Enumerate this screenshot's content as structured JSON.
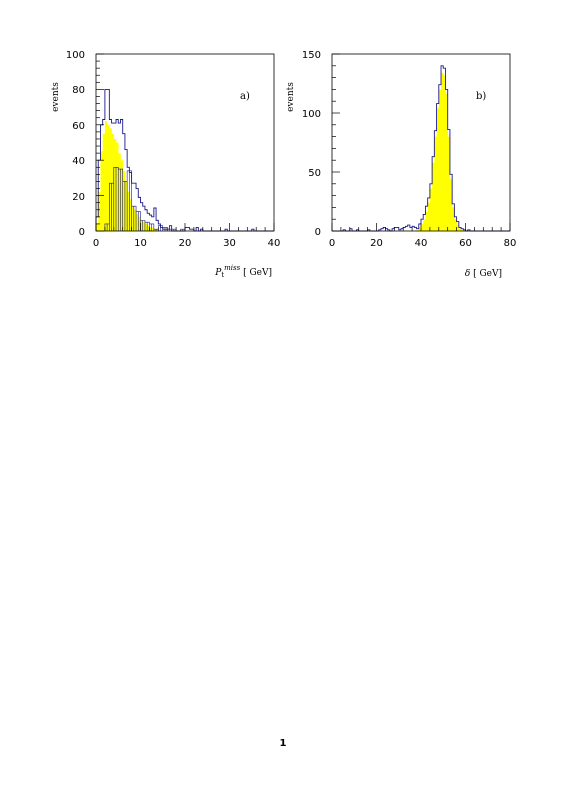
{
  "page": {
    "number": "1"
  },
  "colors": {
    "fill": "#ffff00",
    "outline": "#1a1a8c",
    "axis": "#000000"
  },
  "chart_data": [
    {
      "type": "histogram",
      "panel_label": "a)",
      "ylabel": "events",
      "xlabel_main": "P",
      "xlabel_sub": "t",
      "xlabel_sup": "miss",
      "xlabel_unit": " [ GeV]",
      "xlim": [
        0,
        40
      ],
      "ylim": [
        0,
        100
      ],
      "xticks": [
        0,
        10,
        20,
        30,
        40
      ],
      "yticks": [
        0,
        20,
        40,
        60,
        80,
        100
      ],
      "bin_start": 0,
      "bin_width": 0.5,
      "outline_values": [
        0,
        0,
        0,
        0,
        4,
        4,
        27,
        27,
        36,
        36,
        35,
        35,
        28,
        28,
        34,
        34,
        14,
        14,
        11,
        11,
        6,
        6,
        5,
        5,
        4,
        4,
        1,
        1,
        3,
        3,
        2,
        2,
        1,
        1,
        1,
        1,
        0,
        0,
        1,
        1,
        0,
        0,
        0,
        0,
        0,
        0,
        0,
        0,
        0,
        0,
        0,
        0,
        0,
        0,
        0,
        0,
        0,
        0,
        0,
        0,
        0,
        0,
        0,
        0,
        0,
        0,
        0,
        0,
        0,
        0,
        0,
        0,
        0,
        0,
        0,
        0,
        0,
        0,
        0,
        0
      ],
      "series": [
        {
          "name": "",
          "values": [
            8,
            40,
            60,
            63,
            80,
            80,
            63,
            61,
            61,
            63,
            61,
            63,
            55,
            46,
            36,
            33,
            27,
            27,
            24,
            19,
            16,
            14,
            12,
            10,
            9,
            8,
            13,
            6,
            4,
            2,
            1,
            1,
            1,
            3,
            0,
            0,
            0,
            0,
            0,
            0,
            2,
            2,
            1,
            1,
            0,
            2,
            0,
            1,
            0,
            0,
            0,
            0,
            0,
            0,
            0,
            0,
            0,
            0,
            1,
            0,
            0,
            0,
            0,
            0,
            0,
            0,
            0,
            0,
            0,
            0,
            1,
            0,
            0,
            0,
            0,
            0,
            0,
            0,
            0,
            0
          ]
        },
        {
          "name": "",
          "values": [
            4,
            22,
            45,
            55,
            62,
            60,
            58,
            55,
            52,
            50,
            44,
            40,
            34,
            28,
            22,
            18,
            14,
            12,
            10,
            8,
            6,
            5,
            4,
            3,
            2,
            2,
            1,
            1,
            0,
            0,
            0,
            0,
            0,
            0,
            0,
            0,
            0,
            0,
            0,
            0,
            0,
            0,
            0,
            0,
            0,
            0,
            0,
            0,
            0,
            0,
            0,
            0,
            0,
            0,
            0,
            0,
            0,
            0,
            0,
            0,
            0,
            0,
            0,
            0,
            0,
            0,
            0,
            0,
            0,
            0,
            0,
            0,
            0,
            0,
            0,
            0,
            0,
            0,
            0,
            0
          ]
        }
      ]
    },
    {
      "type": "histogram",
      "panel_label": "b)",
      "ylabel": "events",
      "xlabel_main": "δ",
      "xlabel_sub": "",
      "xlabel_sup": "",
      "xlabel_unit": " [ GeV]",
      "xlim": [
        0,
        80
      ],
      "ylim": [
        0,
        150
      ],
      "xticks": [
        0,
        20,
        40,
        60,
        80
      ],
      "yticks": [
        0,
        50,
        100,
        150
      ],
      "bin_start": 0,
      "bin_width": 1,
      "series": [
        {
          "name": "",
          "values": [
            0,
            0,
            0,
            0,
            0,
            1,
            0,
            0,
            2,
            0,
            0,
            1,
            0,
            0,
            0,
            0,
            1,
            0,
            0,
            0,
            0,
            1,
            2,
            3,
            2,
            1,
            0,
            2,
            3,
            3,
            1,
            2,
            3,
            4,
            5,
            3,
            4,
            3,
            2,
            6,
            10,
            14,
            21,
            28,
            40,
            63,
            85,
            108,
            124,
            140,
            138,
            120,
            86,
            48,
            23,
            12,
            8,
            3,
            2,
            1,
            0,
            1,
            0,
            0,
            0,
            0,
            0,
            0,
            0,
            0,
            0,
            0,
            0,
            0,
            0,
            0,
            0,
            0,
            0,
            0
          ]
        },
        {
          "name": "",
          "values": [
            0,
            0,
            0,
            0,
            0,
            0,
            0,
            0,
            0,
            0,
            0,
            0,
            0,
            0,
            0,
            0,
            0,
            0,
            0,
            0,
            0,
            0,
            0,
            0,
            0,
            0,
            0,
            0,
            0,
            0,
            0,
            0,
            0,
            0,
            0,
            0,
            0,
            0,
            1,
            3,
            6,
            10,
            16,
            24,
            36,
            58,
            80,
            104,
            120,
            134,
            132,
            116,
            80,
            44,
            20,
            10,
            5,
            2,
            1,
            0,
            0,
            0,
            0,
            0,
            0,
            0,
            0,
            0,
            0,
            0,
            0,
            0,
            0,
            0,
            0,
            0,
            0,
            0,
            0,
            0
          ]
        }
      ]
    }
  ]
}
